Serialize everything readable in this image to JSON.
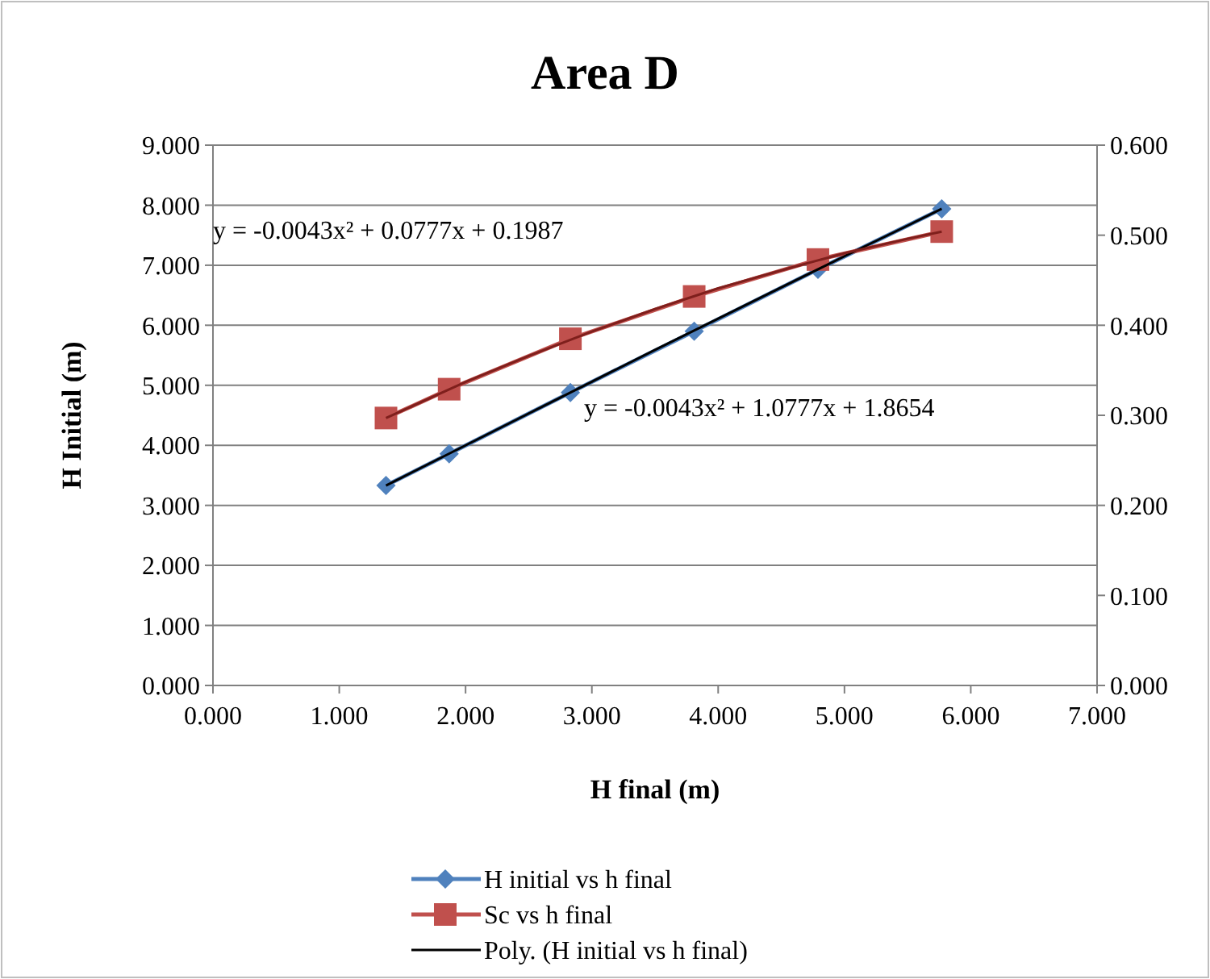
{
  "chart_data": {
    "type": "line",
    "title": "Area D",
    "xlabel": "H final (m)",
    "ylabel": "H Initial (m)",
    "xlim": [
      0,
      7
    ],
    "xticks": [
      {
        "value": 0,
        "label": "0.000"
      },
      {
        "value": 1,
        "label": "1.000"
      },
      {
        "value": 2,
        "label": "2.000"
      },
      {
        "value": 3,
        "label": "3.000"
      },
      {
        "value": 4,
        "label": "4.000"
      },
      {
        "value": 5,
        "label": "5.000"
      },
      {
        "value": 6,
        "label": "6.000"
      },
      {
        "value": 7,
        "label": "7.000"
      }
    ],
    "ylim": [
      0,
      9
    ],
    "yticks": [
      {
        "value": 0,
        "label": "0.000"
      },
      {
        "value": 1,
        "label": "1.000"
      },
      {
        "value": 2,
        "label": "2.000"
      },
      {
        "value": 3,
        "label": "3.000"
      },
      {
        "value": 4,
        "label": "4.000"
      },
      {
        "value": 5,
        "label": "5.000"
      },
      {
        "value": 6,
        "label": "6.000"
      },
      {
        "value": 7,
        "label": "7.000"
      },
      {
        "value": 8,
        "label": "8.000"
      },
      {
        "value": 9,
        "label": "9.000"
      }
    ],
    "y2lim": [
      0,
      0.6
    ],
    "y2ticks": [
      {
        "value": 0,
        "label": "0.000"
      },
      {
        "value": 0.1,
        "label": "0.100"
      },
      {
        "value": 0.2,
        "label": "0.200"
      },
      {
        "value": 0.3,
        "label": "0.300"
      },
      {
        "value": 0.4,
        "label": "0.400"
      },
      {
        "value": 0.5,
        "label": "0.500"
      },
      {
        "value": 0.6,
        "label": "0.600"
      }
    ],
    "grid": "y",
    "legend": "bottom",
    "series": [
      {
        "name": "H initial vs h final",
        "color": "#4f81bd",
        "marker": "diamond",
        "x": [
          1.37,
          1.87,
          2.83,
          3.81,
          4.79,
          5.77
        ],
        "values": [
          3.33,
          3.86,
          4.88,
          5.9,
          6.93,
          7.94
        ]
      },
      {
        "name": "Sc vs h final",
        "color": "#c0504d",
        "marker": "square",
        "axis": "y2",
        "x": [
          1.37,
          1.87,
          2.83,
          3.81,
          4.79,
          5.77
        ],
        "values": [
          0.297,
          0.329,
          0.385,
          0.432,
          0.473,
          0.504
        ]
      },
      {
        "name": "Poly. (H initial vs h final)",
        "color": "#000000",
        "marker": "none",
        "x": [
          1.37,
          2,
          2.5,
          3,
          3.5,
          4,
          4.5,
          5,
          5.5,
          5.77
        ],
        "values": [
          3.33,
          4.0,
          4.53,
          5.06,
          5.59,
          6.11,
          6.63,
          7.15,
          7.66,
          7.94
        ]
      },
      {
        "color": "#7f1f1c",
        "marker": "none",
        "axis": "y2",
        "x": [
          1.37,
          2,
          2.5,
          3,
          3.5,
          4,
          4.5,
          5,
          5.5,
          5.77
        ],
        "values": [
          0.297,
          0.337,
          0.366,
          0.393,
          0.418,
          0.441,
          0.461,
          0.48,
          0.496,
          0.504
        ]
      }
    ],
    "annotations": [
      "y = -0.0043x² + 0.0777x + 0.1987",
      "y = -0.0043x² + 1.0777x + 1.8654"
    ]
  }
}
